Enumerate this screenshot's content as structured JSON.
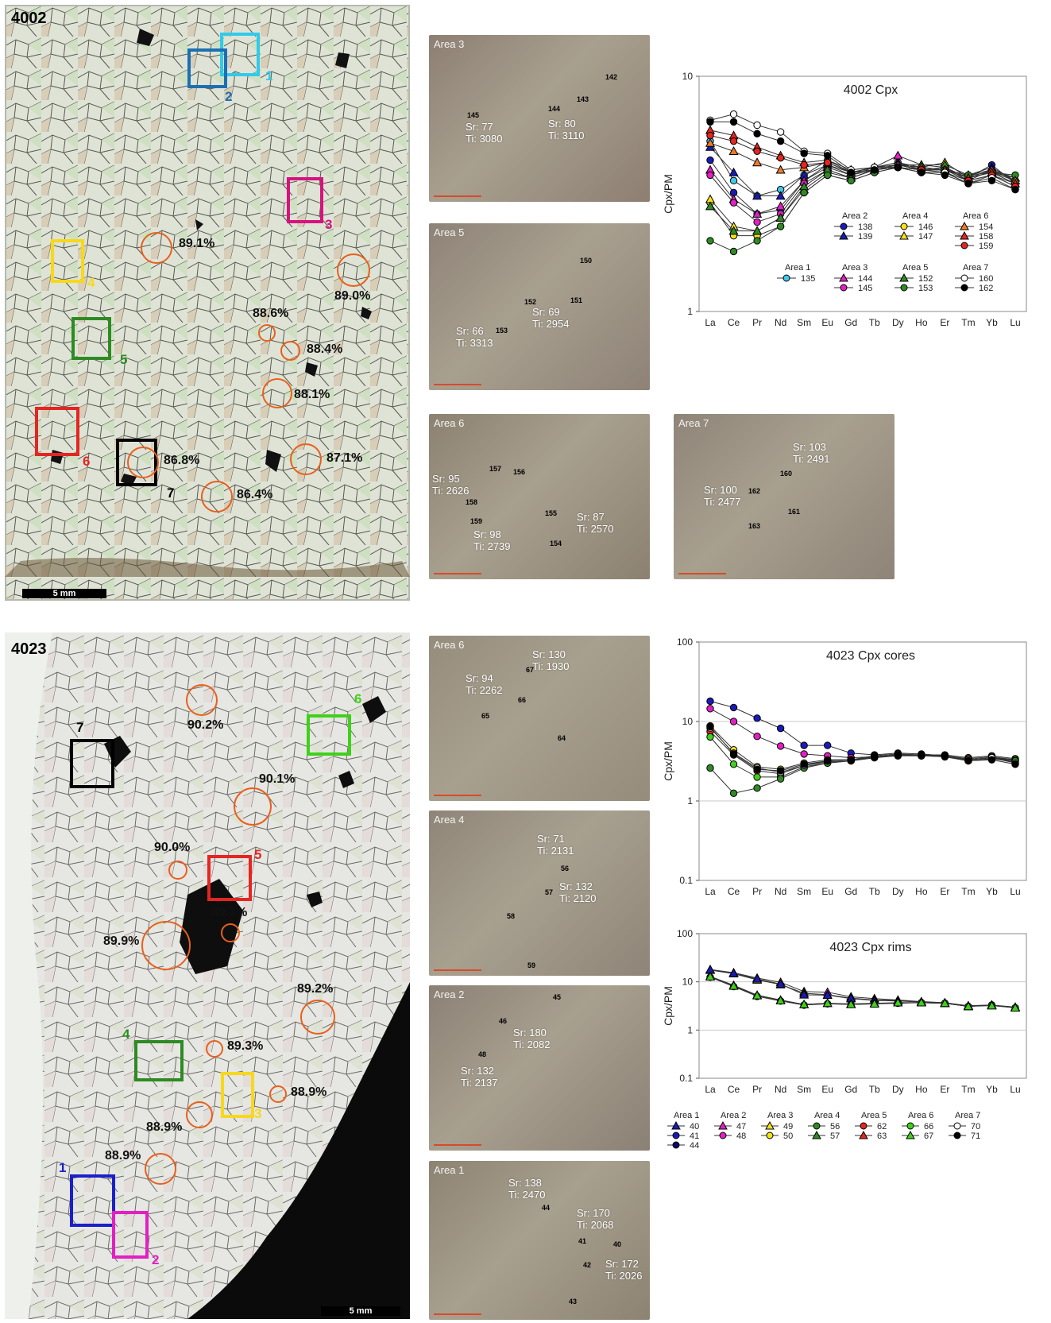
{
  "slide4002": {
    "label": "4002",
    "scale": "5 mm",
    "areas": [
      {
        "num": "1",
        "color": "#2ecbea"
      },
      {
        "num": "2",
        "color": "#1d6fb3"
      },
      {
        "num": "3",
        "color": "#d7127e"
      },
      {
        "num": "4",
        "color": "#f7d81a"
      },
      {
        "num": "5",
        "color": "#2e8b23"
      },
      {
        "num": "6",
        "color": "#e52521"
      },
      {
        "num": "7",
        "color": "#000000"
      }
    ],
    "fo": [
      "89.1%",
      "89.0%",
      "88.6%",
      "88.4%",
      "88.1%",
      "86.8%",
      "87.1%",
      "86.4%"
    ]
  },
  "slide4023": {
    "label": "4023",
    "scale": "5 mm",
    "areas": [
      {
        "num": "1",
        "color": "#1a20c9"
      },
      {
        "num": "2",
        "color": "#e31fc4"
      },
      {
        "num": "3",
        "color": "#f7d81a"
      },
      {
        "num": "4",
        "color": "#2e8b23"
      },
      {
        "num": "5",
        "color": "#e52521"
      },
      {
        "num": "6",
        "color": "#3fd11a"
      },
      {
        "num": "7",
        "color": "#000000"
      }
    ],
    "fo": [
      "90.2%",
      "90.1%",
      "90.0%",
      "89.7%",
      "89.9%",
      "89.2%",
      "89.3%",
      "88.9%",
      "88.9%",
      "88.9%"
    ]
  },
  "photos": [
    {
      "title": "Area 3",
      "tint": "#8d7f72",
      "labels": [
        "Sr: 77\nTi: 3080",
        "Sr: 80\nTi: 3110"
      ],
      "ids": [
        "145",
        "144",
        "143",
        "142"
      ]
    },
    {
      "title": "Area 5",
      "tint": "#8e8277",
      "labels": [
        "Sr: 66\nTi: 3313",
        "Sr: 69\nTi: 2954"
      ],
      "ids": [
        "153",
        "152",
        "151",
        "150"
      ]
    },
    {
      "title": "Area 6",
      "tint": "#8c8170",
      "labels": [
        "Sr: 95\nTi: 2626",
        "Sr: 98\nTi: 2739",
        "Sr: 87\nTi: 2570"
      ],
      "ids": [
        "157",
        "158",
        "159",
        "156",
        "155",
        "154"
      ]
    },
    {
      "title": "Area 7",
      "tint": "#8f8478",
      "labels": [
        "Sr: 103\nTi: 2491",
        "Sr: 100\nTi: 2477"
      ],
      "ids": [
        "160",
        "162",
        "161",
        "163"
      ]
    },
    {
      "title": "Area 6",
      "tint": "#958c7c",
      "labels": [
        "Sr: 130\nTi: 1930",
        "Sr: 94\nTi: 2262"
      ],
      "ids": [
        "67",
        "66",
        "65",
        "64"
      ]
    },
    {
      "title": "Area 4",
      "tint": "#8e8578",
      "labels": [
        "Sr: 71\nTi: 2131",
        "Sr: 132\nTi: 2120"
      ],
      "ids": [
        "56",
        "57",
        "58",
        "59"
      ]
    },
    {
      "title": "Area 2",
      "tint": "#8b8075",
      "labels": [
        "Sr: 180\nTi: 2082",
        "Sr: 132\nTi: 2137"
      ],
      "ids": [
        "45",
        "46",
        "48"
      ]
    },
    {
      "title": "Area 1",
      "tint": "#8c8373",
      "labels": [
        "Sr: 138\nTi: 2470",
        "Sr: 170\nTi: 2068",
        "Sr: 172\nTi: 2026"
      ],
      "ids": [
        "44",
        "41",
        "40",
        "42",
        "43"
      ]
    }
  ],
  "chart_data": [
    {
      "type": "line",
      "title": "4002 Cpx",
      "ylabel": "Cpx/PM",
      "yscale": "log",
      "ylim": [
        1,
        10
      ],
      "ytick_labels": [
        "1",
        "10"
      ],
      "categories": [
        "La",
        "Ce",
        "Pr",
        "Nd",
        "Sm",
        "Eu",
        "Gd",
        "Tb",
        "Dy",
        "Ho",
        "Er",
        "Tm",
        "Yb",
        "Lu"
      ],
      "legend_groups": [
        "Area 1",
        "Area 2",
        "Area 3",
        "Area 4",
        "Area 5",
        "Area 6",
        "Area 7"
      ],
      "series": [
        {
          "name": "135",
          "group": "Area 1",
          "marker": "circle",
          "color": "#40c8ee",
          "values": [
            5.3,
            3.6,
            3.1,
            3.3,
            3.8,
            4.4,
            3.9,
            4.1,
            4.3,
            4.0,
            4.1,
            3.6,
            4.0,
            3.6
          ]
        },
        {
          "name": "138",
          "group": "Area 2",
          "marker": "circle",
          "color": "#1a1ab8",
          "values": [
            4.4,
            3.2,
            2.6,
            2.7,
            3.6,
            4.2,
            3.8,
            4.0,
            4.2,
            4.0,
            4.0,
            3.7,
            4.2,
            3.5
          ]
        },
        {
          "name": "139",
          "group": "Area 2",
          "marker": "triangle",
          "color": "#1a1ab8",
          "values": [
            5.0,
            3.9,
            3.1,
            3.1,
            3.8,
            4.2,
            3.9,
            4.1,
            4.3,
            4.1,
            4.0,
            3.8,
            4.1,
            3.6
          ]
        },
        {
          "name": "144",
          "group": "Area 3",
          "marker": "triangle",
          "color": "#e31fc4",
          "values": [
            4.0,
            3.0,
            2.6,
            2.8,
            3.6,
            4.1,
            3.8,
            4.1,
            4.6,
            4.2,
            4.1,
            3.7,
            3.9,
            3.7
          ]
        },
        {
          "name": "145",
          "group": "Area 3",
          "marker": "circle",
          "color": "#e31fc4",
          "values": [
            3.8,
            2.9,
            2.4,
            2.6,
            3.5,
            4.0,
            3.7,
            4.0,
            4.2,
            4.0,
            4.0,
            3.6,
            3.8,
            3.5
          ]
        },
        {
          "name": "146",
          "group": "Area 4",
          "marker": "circle",
          "color": "#f7e11a",
          "values": [
            2.9,
            2.1,
            2.1,
            2.3,
            3.2,
            3.8,
            3.6,
            3.9,
            4.1,
            3.9,
            3.9,
            3.5,
            3.8,
            3.4
          ]
        },
        {
          "name": "147",
          "group": "Area 4",
          "marker": "triangle",
          "color": "#f7e11a",
          "values": [
            3.0,
            2.3,
            2.2,
            2.5,
            3.3,
            3.9,
            3.7,
            4.0,
            4.2,
            4.1,
            4.3,
            3.7,
            3.9,
            3.6
          ]
        },
        {
          "name": "152",
          "group": "Area 5",
          "marker": "triangle",
          "color": "#2e8b23",
          "values": [
            2.8,
            2.2,
            2.2,
            2.5,
            3.4,
            4.0,
            3.7,
            4.0,
            4.2,
            4.2,
            4.2,
            3.8,
            4.0,
            3.7
          ]
        },
        {
          "name": "153",
          "group": "Area 5",
          "marker": "circle",
          "color": "#2e8b23",
          "values": [
            2.0,
            1.8,
            2.0,
            2.3,
            3.2,
            3.8,
            3.6,
            3.9,
            4.1,
            4.0,
            4.0,
            3.8,
            3.9,
            3.8
          ]
        },
        {
          "name": "154",
          "group": "Area 6",
          "marker": "triangle",
          "color": "#f07b25",
          "values": [
            5.2,
            4.8,
            4.3,
            4.0,
            4.1,
            4.3,
            3.9,
            4.1,
            4.2,
            4.1,
            4.0,
            3.7,
            4.0,
            3.6
          ]
        },
        {
          "name": "158",
          "group": "Area 6",
          "marker": "triangle",
          "color": "#e52521",
          "values": [
            5.9,
            5.6,
            5.0,
            4.6,
            4.3,
            4.4,
            4.0,
            4.1,
            4.2,
            4.0,
            4.0,
            3.7,
            3.9,
            3.5
          ]
        },
        {
          "name": "159",
          "group": "Area 6",
          "marker": "circle",
          "color": "#e52521",
          "values": [
            5.6,
            5.3,
            4.8,
            4.5,
            4.2,
            4.3,
            3.9,
            4.0,
            4.1,
            4.0,
            3.9,
            3.6,
            3.8,
            3.4
          ]
        },
        {
          "name": "160",
          "group": "Area 7",
          "marker": "circle",
          "color": "#ffffff",
          "values": [
            6.5,
            6.9,
            6.2,
            5.8,
            4.8,
            4.7,
            4.0,
            4.1,
            4.1,
            3.9,
            3.9,
            3.5,
            3.7,
            3.3
          ]
        },
        {
          "name": "162",
          "group": "Area 7",
          "marker": "circle",
          "color": "#000000",
          "values": [
            6.4,
            6.4,
            5.7,
            5.3,
            4.7,
            4.6,
            3.9,
            4.0,
            4.1,
            3.9,
            3.8,
            3.5,
            3.6,
            3.3
          ]
        }
      ]
    },
    {
      "type": "line",
      "title": "4023 Cpx cores",
      "ylabel": "Cpx/PM",
      "yscale": "log",
      "ylim": [
        0.1,
        100
      ],
      "ytick_labels": [
        "0.1",
        "1",
        "10",
        "100"
      ],
      "grid": true,
      "categories": [
        "La",
        "Ce",
        "Pr",
        "Nd",
        "Sm",
        "Eu",
        "Gd",
        "Tb",
        "Dy",
        "Ho",
        "Er",
        "Tm",
        "Yb",
        "Lu"
      ],
      "series": [
        {
          "name": "40",
          "marker": "circle",
          "color": "#1a1ab8",
          "values": [
            18,
            15,
            11,
            8.2,
            5.0,
            5.0,
            4.0,
            3.8,
            4.0,
            3.9,
            3.7,
            3.3,
            3.5,
            3.2
          ]
        },
        {
          "name": "47",
          "marker": "circle",
          "color": "#e31fc4",
          "values": [
            14.5,
            10,
            6.5,
            4.9,
            3.9,
            3.7,
            3.5,
            3.6,
            3.7,
            3.7,
            3.6,
            3.2,
            3.4,
            3.1
          ]
        },
        {
          "name": "49",
          "marker": "circle",
          "color": "#f7e11a",
          "values": [
            8.8,
            4.4,
            2.7,
            2.5,
            3.0,
            3.3,
            3.3,
            3.7,
            3.9,
            3.8,
            3.8,
            3.5,
            3.7,
            3.4
          ]
        },
        {
          "name": "62",
          "marker": "circle",
          "color": "#e52521",
          "values": [
            7.5,
            3.8,
            2.4,
            2.2,
            2.8,
            3.1,
            3.2,
            3.6,
            3.8,
            3.8,
            3.7,
            3.4,
            3.6,
            3.3
          ]
        },
        {
          "name": "66",
          "marker": "circle",
          "color": "#3fd11a",
          "values": [
            6.4,
            2.9,
            2.0,
            2.0,
            2.7,
            3.0,
            3.2,
            3.5,
            3.8,
            3.7,
            3.7,
            3.3,
            3.5,
            3.3
          ]
        },
        {
          "name": "56",
          "marker": "circle",
          "color": "#2e8b23",
          "values": [
            2.6,
            1.25,
            1.45,
            1.9,
            2.6,
            3.0,
            3.2,
            3.5,
            3.7,
            3.7,
            3.6,
            3.2,
            3.4,
            3.2
          ]
        },
        {
          "name": "70",
          "marker": "circle",
          "color": "#ffffff",
          "values": [
            8.3,
            4.0,
            2.6,
            2.3,
            2.8,
            3.2,
            3.3,
            3.6,
            3.8,
            3.8,
            3.7,
            3.3,
            3.5,
            3.0
          ]
        },
        {
          "name": "71",
          "marker": "circle",
          "color": "#000000",
          "values": [
            8.6,
            3.9,
            2.5,
            2.4,
            2.9,
            3.2,
            3.3,
            3.6,
            3.8,
            3.8,
            3.7,
            3.2,
            3.3,
            2.9
          ]
        }
      ]
    },
    {
      "type": "line",
      "title": "4023 Cpx rims",
      "ylabel": "Cpx/PM",
      "yscale": "log",
      "ylim": [
        0.1,
        100
      ],
      "ytick_labels": [
        "0.1",
        "1",
        "10",
        "100"
      ],
      "grid": true,
      "categories": [
        "La",
        "Ce",
        "Pr",
        "Nd",
        "Sm",
        "Eu",
        "Gd",
        "Tb",
        "Dy",
        "Ho",
        "Er",
        "Tm",
        "Yb",
        "Lu"
      ],
      "legend": [
        {
          "group": "Area 1",
          "items": [
            {
              "name": "40",
              "marker": "triangle",
              "color": "#1a1ab8"
            },
            {
              "name": "41",
              "marker": "circle",
              "color": "#1a1ab8"
            },
            {
              "name": "44",
              "marker": "circle",
              "color": "#0a0a6a"
            }
          ]
        },
        {
          "group": "Area 2",
          "items": [
            {
              "name": "47",
              "marker": "triangle",
              "color": "#e31fc4"
            },
            {
              "name": "48",
              "marker": "circle",
              "color": "#e31fc4"
            }
          ]
        },
        {
          "group": "Area 3",
          "items": [
            {
              "name": "49",
              "marker": "triangle",
              "color": "#f7e11a"
            },
            {
              "name": "50",
              "marker": "circle",
              "color": "#f7e11a"
            }
          ]
        },
        {
          "group": "Area 4",
          "items": [
            {
              "name": "56",
              "marker": "circle",
              "color": "#2e8b23"
            },
            {
              "name": "57",
              "marker": "triangle",
              "color": "#2e8b23"
            }
          ]
        },
        {
          "group": "Area 5",
          "items": [
            {
              "name": "62",
              "marker": "circle",
              "color": "#e52521"
            },
            {
              "name": "63",
              "marker": "triangle",
              "color": "#e52521"
            }
          ]
        },
        {
          "group": "Area 6",
          "items": [
            {
              "name": "66",
              "marker": "circle",
              "color": "#3fd11a"
            },
            {
              "name": "67",
              "marker": "triangle",
              "color": "#3fd11a"
            }
          ]
        },
        {
          "group": "Area 7",
          "items": [
            {
              "name": "70",
              "marker": "circle",
              "color": "#ffffff"
            },
            {
              "name": "71",
              "marker": "circle",
              "color": "#000000"
            }
          ]
        }
      ],
      "series": [
        {
          "name": "47",
          "marker": "triangle",
          "color": "#e31fc4",
          "values": [
            18,
            15.5,
            12,
            9.8,
            6.3,
            6.1,
            4.9,
            4.5,
            4.2,
            3.9,
            3.7,
            3.2,
            3.3,
            3.0
          ]
        },
        {
          "name": "49",
          "marker": "triangle",
          "color": "#f7e11a",
          "values": [
            17.5,
            14.8,
            11,
            8.8,
            5.8,
            5.4,
            4.6,
            4.2,
            4.1,
            3.8,
            3.6,
            3.2,
            3.3,
            2.9
          ]
        },
        {
          "name": "40",
          "marker": "triangle",
          "color": "#1a1ab8",
          "values": [
            17.8,
            15,
            11.5,
            9.0,
            5.4,
            5.3,
            4.5,
            4.1,
            4.0,
            3.8,
            3.6,
            3.1,
            3.3,
            2.9
          ]
        },
        {
          "name": "56",
          "marker": "circle",
          "color": "#2e8b23",
          "values": [
            12.5,
            8.0,
            5.0,
            4.0,
            3.3,
            3.5,
            3.4,
            3.5,
            3.6,
            3.7,
            3.6,
            3.1,
            3.3,
            2.9
          ]
        },
        {
          "name": "57",
          "marker": "triangle",
          "color": "#2e8b23",
          "values": [
            13,
            8.5,
            5.3,
            4.2,
            3.4,
            3.6,
            3.5,
            3.6,
            3.7,
            3.7,
            3.6,
            3.1,
            3.3,
            2.9
          ]
        },
        {
          "name": "67",
          "marker": "triangle",
          "color": "#3fd11a",
          "values": [
            12.8,
            8.2,
            5.2,
            4.1,
            3.4,
            3.6,
            3.4,
            3.5,
            3.7,
            3.7,
            3.6,
            3.1,
            3.2,
            2.9
          ]
        }
      ]
    }
  ]
}
